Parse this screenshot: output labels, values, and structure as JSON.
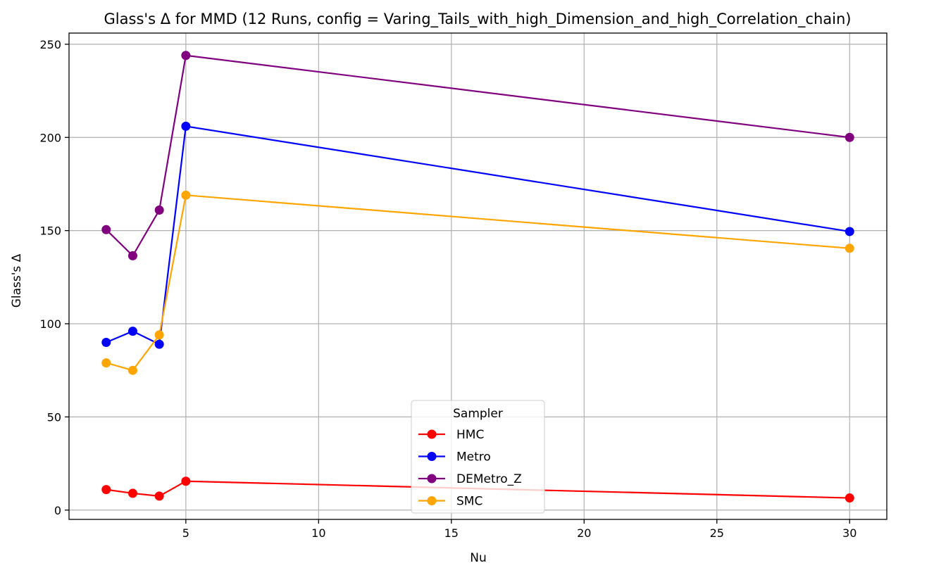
{
  "chart_data": {
    "type": "line",
    "title": "Glass's Δ for MMD (12 Runs, config = Varing_Tails_with_high_Dimension_and_high_Correlation_chain)",
    "xlabel": "Nu",
    "ylabel": "Glass's Δ",
    "xlim": [
      0.6,
      31.4
    ],
    "ylim": [
      -5,
      256
    ],
    "xticks": [
      5,
      10,
      15,
      20,
      25,
      30
    ],
    "yticks": [
      0,
      50,
      100,
      150,
      200,
      250
    ],
    "grid": true,
    "legend": {
      "title": "Sampler",
      "placement": "lower center"
    },
    "x": [
      2,
      3,
      4,
      5,
      30
    ],
    "series": [
      {
        "name": "HMC",
        "color": "#ff0000",
        "marker": "circle",
        "values": [
          11,
          9,
          7.5,
          15.5,
          6.5
        ]
      },
      {
        "name": "Metro",
        "color": "#0000ff",
        "marker": "circle",
        "values": [
          90,
          96,
          89,
          206,
          149.5
        ]
      },
      {
        "name": "DEMetro_Z",
        "color": "#800080",
        "marker": "circle",
        "values": [
          150.5,
          136.5,
          161,
          244,
          200
        ]
      },
      {
        "name": "SMC",
        "color": "#ffa500",
        "marker": "circle",
        "values": [
          79,
          75,
          94,
          169,
          140.5
        ]
      }
    ]
  }
}
